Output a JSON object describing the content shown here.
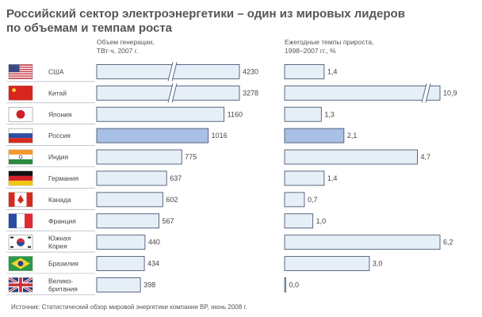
{
  "chart_data": {
    "type": "bar",
    "title_lines": [
      "Российский сектор электроэнергетики – один из мировых лидеров",
      "по объемам и темпам роста"
    ],
    "categories": [
      {
        "lines": [
          "США"
        ],
        "flag": "us"
      },
      {
        "lines": [
          "Китай"
        ],
        "flag": "cn"
      },
      {
        "lines": [
          "Япония"
        ],
        "flag": "jp"
      },
      {
        "lines": [
          "Россия"
        ],
        "flag": "ru"
      },
      {
        "lines": [
          "Индия"
        ],
        "flag": "in"
      },
      {
        "lines": [
          "Германия"
        ],
        "flag": "de"
      },
      {
        "lines": [
          "Канада"
        ],
        "flag": "ca"
      },
      {
        "lines": [
          "Франция"
        ],
        "flag": "fr"
      },
      {
        "lines": [
          "Южная",
          "Корея"
        ],
        "flag": "kr"
      },
      {
        "lines": [
          "Бразилия"
        ],
        "flag": "br"
      },
      {
        "lines": [
          "Велико-",
          "британия"
        ],
        "flag": "gb"
      }
    ],
    "highlight_index": 3,
    "series": [
      {
        "title_lines": [
          "Объем генерации,",
          "ТВт·ч, 2007 г."
        ],
        "values": [
          4230,
          3278,
          1160,
          1016,
          775,
          637,
          602,
          567,
          440,
          434,
          398
        ],
        "labels": [
          "4230",
          "3278",
          "1160",
          "1016",
          "775",
          "637",
          "602",
          "567",
          "440",
          "434",
          "398"
        ],
        "broken": [
          true,
          true,
          false,
          false,
          false,
          false,
          false,
          false,
          false,
          false,
          false
        ]
      },
      {
        "title_lines": [
          "Ежегодные темпы прироста,",
          "1998–2007 гг., %"
        ],
        "values": [
          1.4,
          10.9,
          1.3,
          2.1,
          4.7,
          1.4,
          0.7,
          1.0,
          6.2,
          3.0,
          0.0
        ],
        "labels": [
          "1,4",
          "10,9",
          "1,3",
          "2,1",
          "4,7",
          "1,4",
          "0,7",
          "1,0",
          "6,2",
          "3,0",
          "0,0"
        ],
        "broken": [
          false,
          true,
          false,
          false,
          false,
          false,
          false,
          false,
          false,
          false,
          false
        ]
      }
    ],
    "source": "Источник: Статистический обзор мировой энергетики компании BP, июнь 2008 г.",
    "colors": {
      "bar_fill": "#e6eef8",
      "bar_highlight": "#a8c0e4",
      "bar_stroke": "#4a5a74",
      "row_line": "#9aa3b0"
    },
    "grid": false,
    "legend": "none"
  }
}
